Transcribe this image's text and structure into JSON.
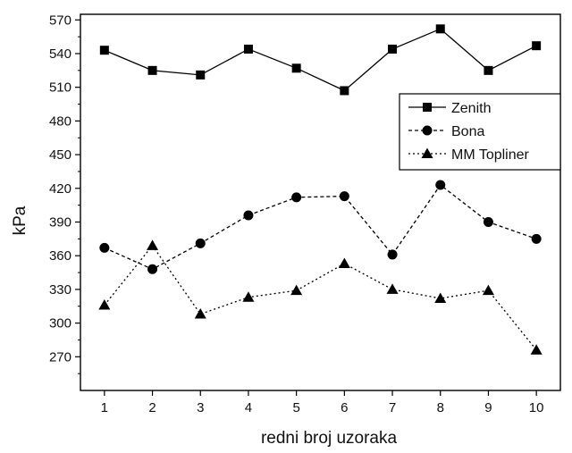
{
  "chart_data": {
    "type": "line",
    "title": "",
    "xlabel": "redni broj uzoraka",
    "ylabel": "kPa",
    "x": [
      1,
      2,
      3,
      4,
      5,
      6,
      7,
      8,
      9,
      10
    ],
    "xticks": [
      "1",
      "2",
      "3",
      "4",
      "5",
      "6",
      "7",
      "8",
      "9",
      "10"
    ],
    "yticks": [
      "270",
      "300",
      "330",
      "360",
      "390",
      "420",
      "450",
      "480",
      "510",
      "540",
      "570"
    ],
    "ylim": [
      240,
      575
    ],
    "xlim": [
      0.5,
      10.5
    ],
    "grid": false,
    "legend_position": "right",
    "series": [
      {
        "name": "Zenith",
        "marker": "square",
        "line_style": "solid",
        "values": [
          543,
          525,
          521,
          544,
          527,
          507,
          544,
          562,
          525,
          547
        ]
      },
      {
        "name": "Bona",
        "marker": "circle",
        "line_style": "dashed",
        "values": [
          367,
          348,
          371,
          396,
          412,
          413,
          361,
          423,
          390,
          375
        ]
      },
      {
        "name": "MM Topliner",
        "marker": "triangle",
        "line_style": "dotted",
        "values": [
          316,
          369,
          308,
          323,
          329,
          353,
          330,
          322,
          329,
          276
        ]
      }
    ],
    "colors": {
      "line": "#000000",
      "background": "#ffffff"
    }
  }
}
